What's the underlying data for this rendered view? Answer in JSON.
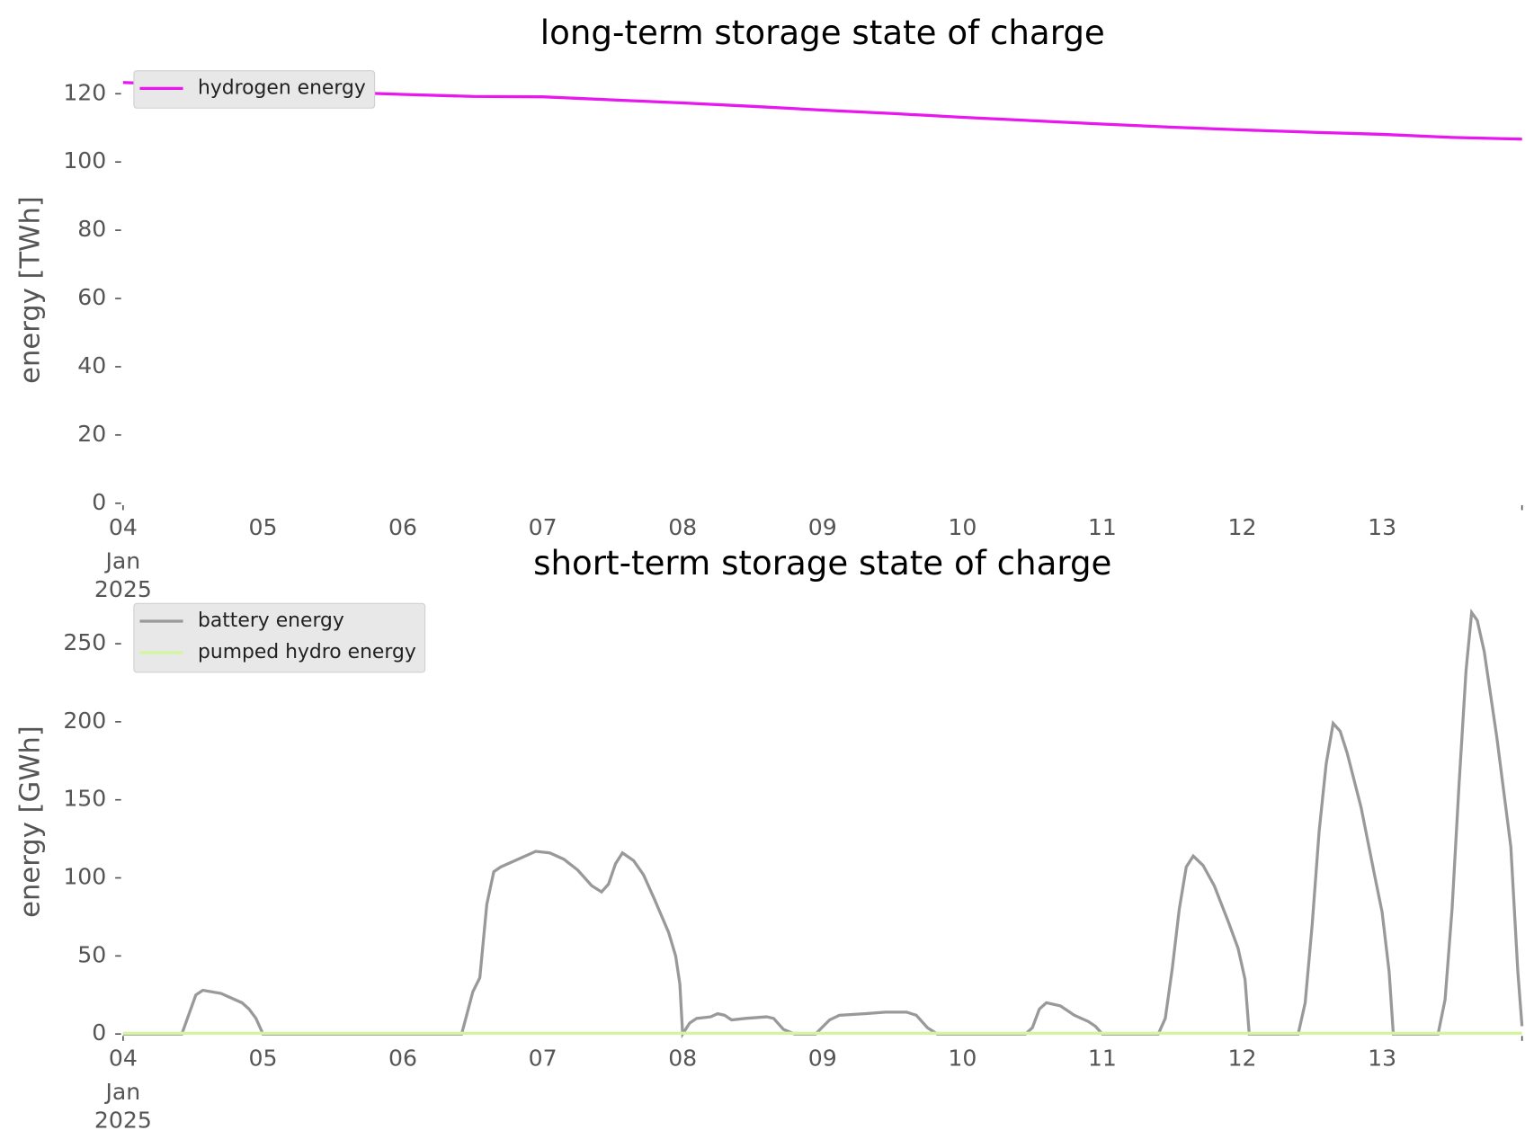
{
  "chart_data": [
    {
      "type": "line",
      "title": "long-term storage state of charge",
      "ylabel": "energy [TWh]",
      "x_month": "Jan",
      "x_year": "2025",
      "xlim": [
        4,
        14
      ],
      "xticks": [
        {
          "value": 4,
          "label": "04"
        },
        {
          "value": 5,
          "label": "05"
        },
        {
          "value": 6,
          "label": "06"
        },
        {
          "value": 7,
          "label": "07"
        },
        {
          "value": 8,
          "label": "08"
        },
        {
          "value": 9,
          "label": "09"
        },
        10,
        11,
        12,
        13
      ],
      "ylim": [
        0,
        125
      ],
      "yticks": [
        0,
        20,
        40,
        60,
        80,
        100,
        120
      ],
      "legend": "upper left",
      "series": [
        {
          "name": "hydrogen energy",
          "color": "#e817f0",
          "x": [
            4,
            4.5,
            5,
            5.5,
            6,
            6.5,
            7,
            7.5,
            8,
            8.5,
            9,
            9.5,
            10,
            10.5,
            11,
            11.5,
            12,
            12.5,
            13,
            13.5,
            14
          ],
          "values": [
            123.3,
            122.5,
            121.5,
            120.5,
            119.8,
            119.2,
            119.1,
            118.2,
            117.3,
            116.3,
            115.2,
            114.2,
            113.1,
            112.1,
            111.1,
            110.2,
            109.4,
            108.7,
            108.1,
            107.2,
            106.7
          ]
        }
      ]
    },
    {
      "type": "line",
      "title": "short-term storage state of charge",
      "ylabel": "energy [GWh]",
      "x_month": "Jan",
      "x_year": "2025",
      "xlim": [
        4,
        14
      ],
      "xticks": [
        {
          "value": 4,
          "label": "04"
        },
        {
          "value": 5,
          "label": "05"
        },
        {
          "value": 6,
          "label": "06"
        },
        {
          "value": 7,
          "label": "07"
        },
        {
          "value": 8,
          "label": "08"
        },
        {
          "value": 9,
          "label": "09"
        },
        10,
        11,
        12,
        13
      ],
      "ylim": [
        0,
        272
      ],
      "yticks": [
        0,
        50,
        100,
        150,
        200,
        250
      ],
      "legend": "upper left",
      "series": [
        {
          "name": "battery energy",
          "color": "#999999",
          "x": [
            4,
            4.42,
            4.52,
            4.57,
            4.7,
            4.85,
            4.9,
            4.95,
            5,
            6.42,
            6.45,
            6.5,
            6.55,
            6.6,
            6.65,
            6.7,
            6.95,
            7.05,
            7.15,
            7.25,
            7.35,
            7.42,
            7.47,
            7.52,
            7.57,
            7.65,
            7.72,
            7.8,
            7.9,
            7.95,
            7.98,
            8,
            8.05,
            8.1,
            8.2,
            8.25,
            8.3,
            8.35,
            8.45,
            8.6,
            8.65,
            8.72,
            8.8,
            8.95,
            9.05,
            9.12,
            9.3,
            9.45,
            9.6,
            9.67,
            9.75,
            9.82,
            10.45,
            10.5,
            10.55,
            10.6,
            10.7,
            10.8,
            10.9,
            10.95,
            11,
            11.4,
            11.45,
            11.5,
            11.55,
            11.6,
            11.65,
            11.72,
            11.8,
            11.9,
            11.97,
            12.02,
            12.05,
            12.4,
            12.45,
            12.5,
            12.55,
            12.6,
            12.65,
            12.7,
            12.75,
            12.85,
            12.95,
            13,
            13.05,
            13.08,
            13.4,
            13.45,
            13.5,
            13.55,
            13.6,
            13.64,
            13.68,
            13.73,
            13.82,
            13.92,
            13.97,
            14
          ],
          "values": [
            0,
            0,
            25,
            28,
            26,
            20,
            16,
            10,
            0,
            0,
            10,
            27,
            36,
            83,
            104,
            107,
            117,
            116,
            112,
            105,
            95,
            91,
            96,
            109,
            116,
            111,
            102,
            86,
            65,
            50,
            32,
            0,
            7,
            10,
            11,
            13,
            12,
            9,
            10,
            11,
            10,
            3,
            0,
            0,
            9,
            12,
            13,
            14,
            14,
            12,
            4,
            0,
            0,
            4,
            16,
            20,
            18,
            12,
            8,
            5,
            0,
            0,
            10,
            42,
            80,
            107,
            114,
            108,
            95,
            72,
            55,
            35,
            0,
            0,
            20,
            70,
            130,
            173,
            199,
            194,
            180,
            145,
            100,
            78,
            40,
            0,
            0,
            22,
            80,
            160,
            233,
            270,
            265,
            245,
            190,
            120,
            40,
            5
          ]
        },
        {
          "name": "pumped hydro energy",
          "color": "#d4f5a0",
          "x": [
            4,
            14
          ],
          "values": [
            0.5,
            0.5
          ]
        }
      ]
    }
  ]
}
